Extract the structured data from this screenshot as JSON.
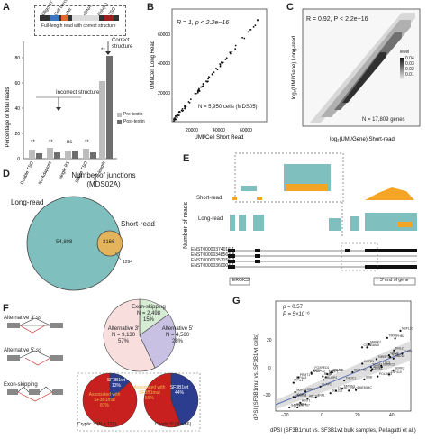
{
  "figure": {
    "panels": [
      "A",
      "B",
      "C",
      "D",
      "E",
      "F",
      "G"
    ],
    "colors": {
      "teal": "#6fb6b3",
      "orange": "#f4a526",
      "pre_textin": "#bdbdbd",
      "post_textin": "#6e6e6e",
      "pink": "#f9dede",
      "lavender": "#c9c1e4",
      "mint": "#d6ecd4",
      "red": "#c8201e",
      "navy": "#2c3d8f"
    }
  },
  "panelA": {
    "schematic_labels": [
      "Oligo dT",
      "Cell barcode",
      "UMI",
      "cDNA",
      "Poly(A)",
      "TSO"
    ],
    "schematic_caption": "Full-length read with correct structure",
    "correct_label": "Correct structure",
    "incorrect_label": "Incorrect structure",
    "sig": [
      "**",
      "**",
      "ns",
      "**",
      "**"
    ],
    "legend": [
      "Pre-textin",
      "Post-textin"
    ]
  },
  "panelB": {
    "stat": "R = 1, p < 2.2e−16",
    "n_label": "N = 5,950 cells (MDS05)"
  },
  "panelC": {
    "stat": "R = 0.92, P < 2.2e−16",
    "n_label": "N = 17,809 genes",
    "legend_title": "level",
    "legend_values": [
      "0.04",
      "0.03",
      "0.02",
      "0.01"
    ]
  },
  "panelD": {
    "title_line1": "Number of junctions",
    "title_line2": "(MDS02A)",
    "long_label": "Long-read",
    "short_label": "Short-read",
    "long_only": "54,808",
    "overlap": "3166",
    "short_only": "1294"
  },
  "panelE": {
    "ylabel": "Number of reads",
    "short_label": "Short-read",
    "long_label": "Long-read",
    "gene": "ERGIC3",
    "end_label": "3′ end of gene",
    "transcripts": [
      "ENST00000374016.1",
      "ENST00000348563.8",
      "ENST00000357156.2",
      "ENST00000360004.1"
    ]
  },
  "panelF": {
    "schematic_labels": [
      "Alternative 3′ ss",
      "Alternative 5′ ss",
      "Exon-skipping"
    ],
    "pie_main": [
      {
        "name": "Exon-skipping",
        "count": "N = 2,498",
        "pct": "15%",
        "value": 15
      },
      {
        "name": "Alternative 5′",
        "count": "N = 4,560",
        "pct": "28%",
        "value": 28
      },
      {
        "name": "Alternative 3′",
        "count": "N = 9,130",
        "pct": "57%",
        "value": 57
      }
    ],
    "pie_left": {
      "caption": "Cryptic 3′ (N = 129)",
      "big_line1": "Associated with",
      "big_line2": "SF3B1mut",
      "big_pct": "87%",
      "small_line1": "SF3B1wt",
      "small_pct": "13%",
      "big_value": 87
    },
    "pie_right": {
      "caption": "Cryptic 5′ (N = 66)",
      "big_line1": "Associated with",
      "big_line2": "SF3B1mut",
      "big_pct": "56%",
      "small_line1": "SF3B1wt",
      "small_pct": "44%",
      "big_value": 56
    }
  },
  "panelG": {
    "stat_rho": "ρ = 0.57",
    "stat_p": "P = 5×10⁻⁶",
    "ylabel": "dPSI (SF3B1mut vs. SF3B1wt cells)",
    "xlabel": "dPSI (SF3B1mut vs. SF3B1wt bulk samples, Pellagatti et al.)",
    "x_ticks": [
      "−20",
      "0",
      "20",
      "40"
    ],
    "y_ticks": [
      "−20",
      "0",
      "20"
    ],
    "genes": [
      "TCEA1",
      "NT5E",
      "ZNF767",
      "FOXRED1",
      "ORAI2",
      "POLDIP3",
      "SURF4",
      "PGAM5",
      "RNF4",
      "TMEM14C",
      "PPIL1",
      "UQCRQ",
      "EIF4A3",
      "SERF2",
      "BCL2L2",
      "DNLZ",
      "THOC1",
      "SEMA4C",
      "C7orf50",
      "ABCB7",
      "NSFL1C",
      "TMX2",
      "ARL6IP4",
      "RAD18",
      "CSN2",
      "MZT1",
      "MYB",
      "SUZ12",
      "ANAPC2",
      "TM9SF2",
      "CBX3",
      "UBB",
      "NF",
      "CLAP1",
      "BRD9",
      "ERGIC3",
      "CERKL",
      "DRG1",
      "TATDN1",
      "HINT1",
      "PHB2",
      "MARK2",
      "ZNF410",
      "TRA2B",
      "TTC3",
      "ZNF1",
      "GAPDH",
      "PRMT1",
      "COPZ1",
      "NOP53",
      "CHUK",
      "TFDP1"
    ]
  }
}
